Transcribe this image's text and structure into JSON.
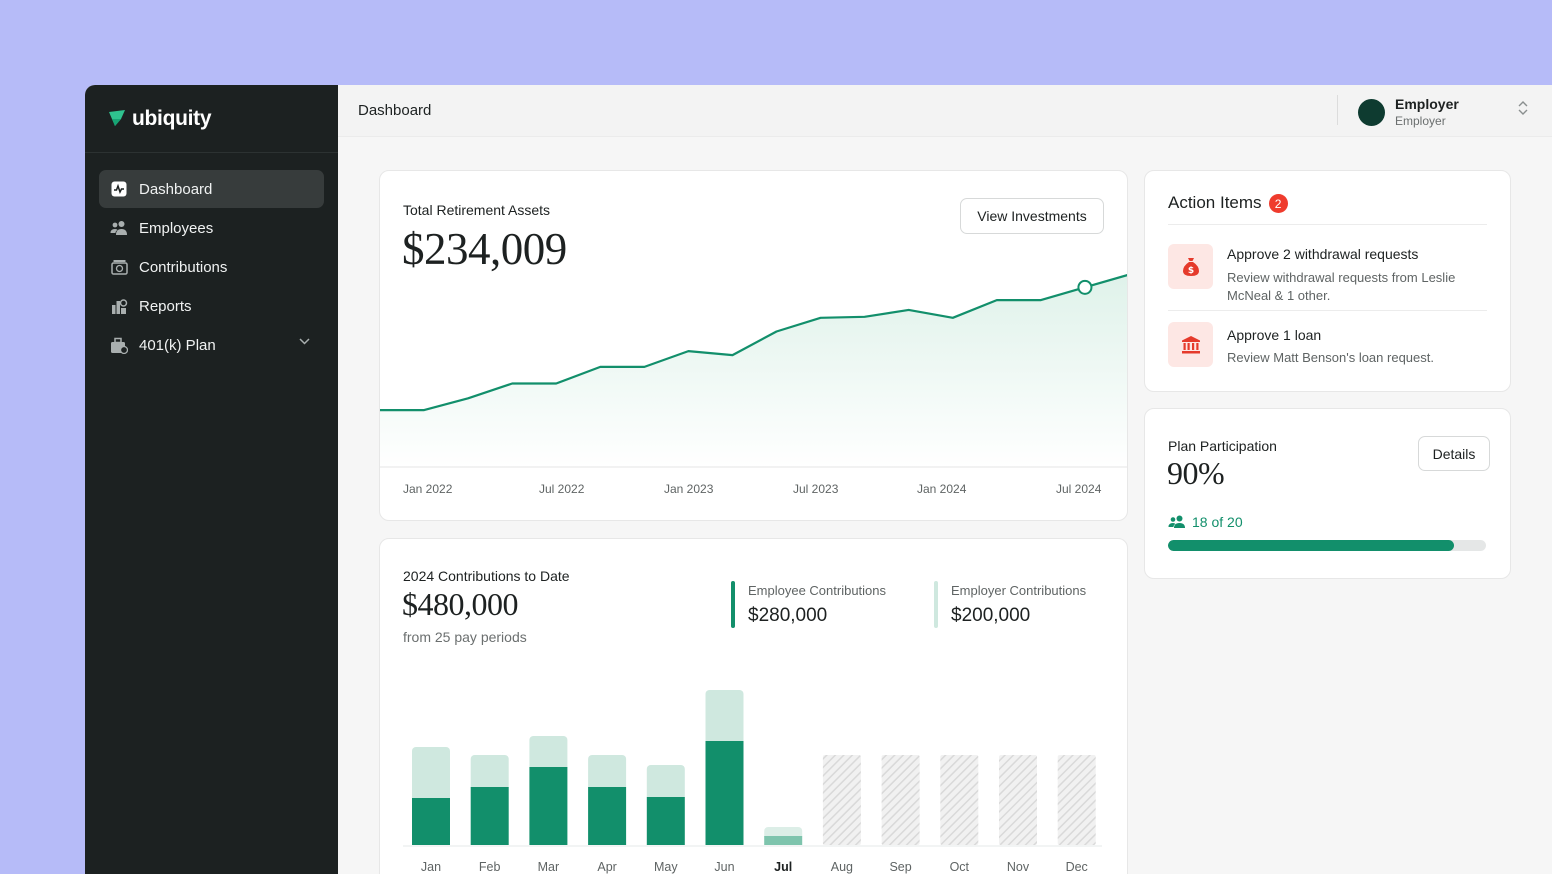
{
  "app": {
    "brand": "ubiquity",
    "breadcrumb": "Dashboard"
  },
  "sidebar": {
    "items": [
      {
        "label": "Dashboard",
        "icon": "activity-icon",
        "active": true
      },
      {
        "label": "Employees",
        "icon": "users-icon"
      },
      {
        "label": "Contributions",
        "icon": "money-icon"
      },
      {
        "label": "Reports",
        "icon": "report-icon"
      },
      {
        "label": "401(k) Plan",
        "icon": "briefcase-icon",
        "expandable": true
      }
    ]
  },
  "user": {
    "name": "Employer",
    "role": "Employer"
  },
  "assets": {
    "label": "Total Retirement Assets",
    "value": "$234,009",
    "button": "View Investments"
  },
  "contributions": {
    "label": "2024 Contributions to Date",
    "value": "$480,000",
    "sub": "from 25 pay periods",
    "employee_label": "Employee Contributions",
    "employee_value": "$280,000",
    "employer_label": "Employer Contributions",
    "employer_value": "$200,000"
  },
  "action_items": {
    "title": "Action Items",
    "count": "2",
    "items": [
      {
        "title": "Approve 2 withdrawal requests",
        "desc": "Review withdrawal requests from Leslie McNeal & 1 other.",
        "icon": "money-bag-icon"
      },
      {
        "title": "Approve 1 loan",
        "desc": "Review Matt Benson's loan request.",
        "icon": "bank-icon"
      }
    ]
  },
  "participation": {
    "label": "Plan Participation",
    "value": "90%",
    "button": "Details",
    "count_text": "18 of 20",
    "progress": 0.9
  },
  "colors": {
    "accent": "#128f6b",
    "accent_light": "#cfe8df",
    "danger": "#ef3b2d",
    "sidebar": "#1c2121"
  },
  "chart_data": [
    {
      "type": "area",
      "x_ticks": [
        "Jan 2022",
        "Jul 2022",
        "Jan 2023",
        "Jul 2023",
        "Jan 2024",
        "Jul 2024"
      ],
      "x": [
        "2021-11",
        "2022-01",
        "2022-03",
        "2022-05",
        "2022-07",
        "2022-09",
        "2022-11",
        "2023-01",
        "2023-03",
        "2023-05",
        "2023-07",
        "2023-09",
        "2023-11",
        "2024-01",
        "2024-03",
        "2024-05",
        "2024-07",
        "2024-08"
      ],
      "values": [
        58,
        58,
        70,
        85,
        85,
        102,
        102,
        118,
        114,
        138,
        152,
        153,
        160,
        152,
        170,
        170,
        183,
        196
      ],
      "highlight_index": 16
    },
    {
      "type": "bar",
      "stacked": true,
      "categories": [
        "Jan",
        "Feb",
        "Mar",
        "Apr",
        "May",
        "Jun",
        "Jul",
        "Aug",
        "Sep",
        "Oct",
        "Nov",
        "Dec"
      ],
      "current_index": 6,
      "series": [
        {
          "name": "Employee Contributions",
          "values": [
            47,
            58,
            78,
            58,
            48,
            104,
            9,
            null,
            null,
            null,
            null,
            null
          ]
        },
        {
          "name": "Employer Contributions",
          "values": [
            51,
            32,
            31,
            32,
            32,
            51,
            9,
            null,
            null,
            null,
            null,
            null
          ]
        }
      ],
      "future_categories": [
        "Aug",
        "Sep",
        "Oct",
        "Nov",
        "Dec"
      ]
    }
  ]
}
